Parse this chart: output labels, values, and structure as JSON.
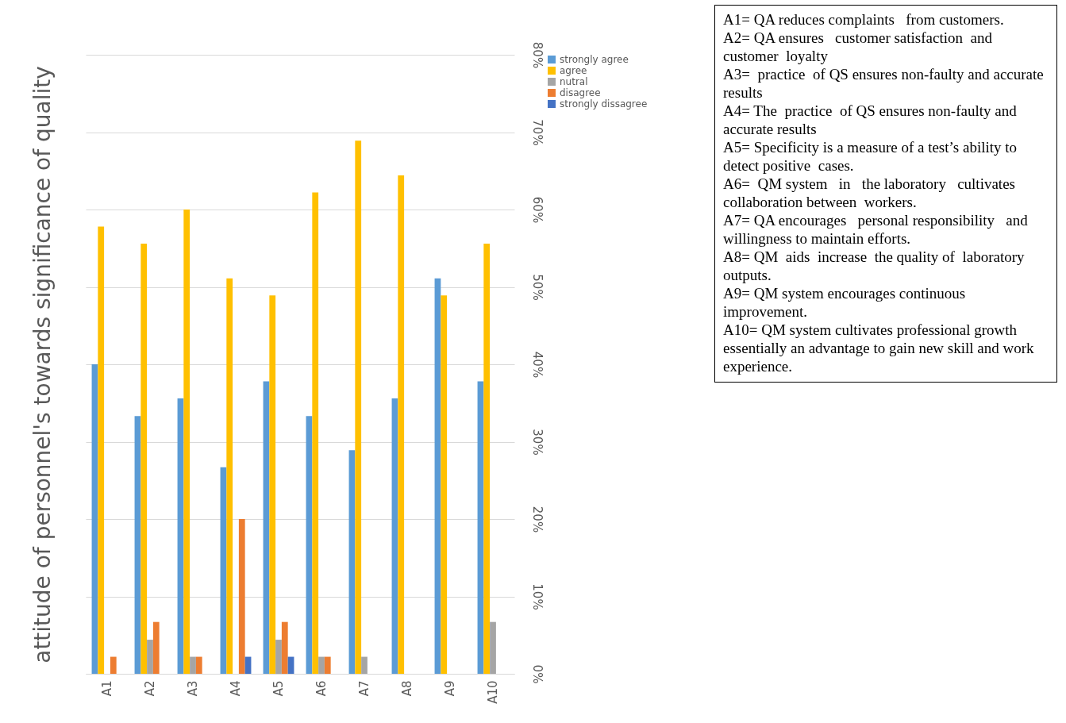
{
  "chart_data": {
    "type": "bar",
    "ylabel": "attitude of personnel's towards significance of quality",
    "categories": [
      "A1",
      "A2",
      "A3",
      "A4",
      "A5",
      "A6",
      "A7",
      "A8",
      "A9",
      "A10"
    ],
    "series": [
      {
        "name": "strongly agree",
        "color": "#5b9bd5",
        "values": [
          40,
          33.3,
          35.6,
          26.7,
          37.8,
          33.3,
          28.9,
          35.6,
          51.1,
          37.8
        ]
      },
      {
        "name": "agree",
        "color": "#ffc000",
        "values": [
          57.8,
          55.6,
          60,
          51.1,
          48.9,
          62.2,
          68.9,
          64.4,
          48.9,
          55.6
        ]
      },
      {
        "name": "nutral",
        "color": "#a5a5a5",
        "values": [
          0,
          4.4,
          2.2,
          0,
          4.4,
          2.2,
          2.2,
          0,
          0,
          6.7
        ]
      },
      {
        "name": "disagree",
        "color": "#ed7d31",
        "values": [
          2.2,
          6.7,
          2.2,
          20,
          6.7,
          2.2,
          0,
          0,
          0,
          0
        ]
      },
      {
        "name": "strongly dissagree",
        "color": "#4472c4",
        "values": [
          0,
          0,
          0,
          2.2,
          2.2,
          0,
          0,
          0,
          0,
          0
        ]
      }
    ],
    "ylim": [
      0,
      80
    ],
    "yticks": [
      {
        "value": 0,
        "label": "0%"
      },
      {
        "value": 10,
        "label": "10%"
      },
      {
        "value": 20,
        "label": "20%"
      },
      {
        "value": 30,
        "label": "30%"
      },
      {
        "value": 40,
        "label": "40%"
      },
      {
        "value": 50,
        "label": "50%"
      },
      {
        "value": 60,
        "label": "60%"
      },
      {
        "value": 70,
        "label": "70%"
      },
      {
        "value": 80,
        "label": "80%"
      }
    ],
    "grid": "y",
    "legend": "right",
    "annotations": [
      "A1= QA reduces complaints   from customers.",
      "A2= QA ensures   customer satisfaction  and   customer  loyalty",
      "A3=  practice  of QS ensures non-faulty and accurate results",
      "A4= The  practice  of QS ensures non-faulty and accurate results",
      "A5= Specificity is a measure of a test’s ability to detect positive  cases.",
      "A6=  QM system   in   the laboratory   cultivates collaboration between  workers.",
      "A7= QA encourages   personal responsibility   and willingness to maintain efforts.",
      "A8= QM  aids  increase  the quality of  laboratory  outputs.",
      "A9= QM system encourages continuous improvement.",
      "A10= QM system cultivates professional growth essentially an advantage to gain new skill and work experience."
    ]
  }
}
